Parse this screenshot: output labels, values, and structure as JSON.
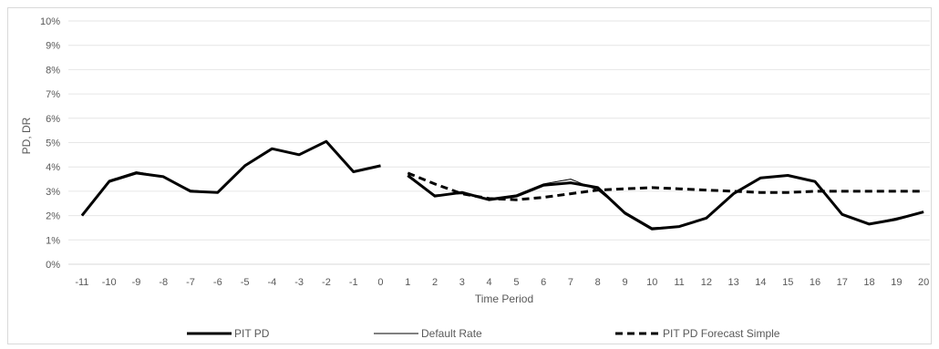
{
  "chart_data": {
    "type": "line",
    "xlabel": "Time Period",
    "ylabel": "PD, DR",
    "ylim": [
      0,
      10
    ],
    "yticks": [
      "0%",
      "1%",
      "2%",
      "3%",
      "4%",
      "5%",
      "6%",
      "7%",
      "8%",
      "9%",
      "10%"
    ],
    "categories": [
      "-11",
      "-10",
      "-9",
      "-8",
      "-7",
      "-6",
      "-5",
      "-4",
      "-3",
      "-2",
      "-1",
      "0",
      "1",
      "2",
      "3",
      "4",
      "5",
      "6",
      "7",
      "8",
      "9",
      "10",
      "11",
      "12",
      "13",
      "14",
      "15",
      "16",
      "17",
      "18",
      "19",
      "20"
    ],
    "grid": true,
    "legend_position": "bottom",
    "series": [
      {
        "name": "PIT PD",
        "style": "thick",
        "color": "#000000",
        "values": [
          2.0,
          3.4,
          3.75,
          3.6,
          3.0,
          2.95,
          4.05,
          4.75,
          4.5,
          5.05,
          3.8,
          4.05,
          null,
          null,
          null,
          null,
          null,
          null,
          null,
          null,
          null,
          null,
          null,
          null,
          null,
          null,
          null,
          null,
          null,
          null,
          null,
          null
        ],
        "values_forecast": [
          null,
          null,
          null,
          null,
          null,
          null,
          null,
          null,
          null,
          null,
          null,
          null,
          3.65,
          2.8,
          2.95,
          2.65,
          2.8,
          3.25,
          3.35,
          3.15,
          2.1,
          1.45,
          1.55,
          1.9,
          2.9,
          3.55,
          3.65,
          3.4,
          2.05,
          1.65,
          1.85,
          2.15
        ]
      },
      {
        "name": "Default Rate",
        "style": "thin",
        "color": "#000000",
        "values": [
          2.0,
          3.45,
          3.8,
          3.6,
          3.05,
          2.95,
          4.05,
          4.75,
          4.5,
          5.05,
          3.8,
          4.05,
          null,
          null,
          null,
          null,
          null,
          null,
          null,
          null,
          null,
          null,
          null,
          null,
          null,
          null,
          null,
          null,
          null,
          null,
          null,
          null
        ],
        "values_forecast": [
          null,
          null,
          null,
          null,
          null,
          null,
          null,
          null,
          null,
          null,
          null,
          null,
          3.6,
          2.85,
          2.9,
          2.7,
          2.85,
          3.3,
          3.5,
          3.05,
          2.15,
          1.5,
          1.55,
          1.9,
          2.9,
          3.55,
          3.65,
          3.4,
          2.05,
          1.65,
          1.9,
          2.15
        ]
      },
      {
        "name": "PIT PD Forecast Simple",
        "style": "dashed",
        "color": "#000000",
        "values": [
          null,
          null,
          null,
          null,
          null,
          null,
          null,
          null,
          null,
          null,
          null,
          null,
          3.75,
          3.3,
          2.9,
          2.7,
          2.65,
          2.75,
          2.9,
          3.05,
          3.1,
          3.15,
          3.1,
          3.05,
          3.0,
          2.95,
          2.95,
          3.0,
          3.0,
          3.0,
          3.0,
          3.0
        ]
      }
    ]
  }
}
